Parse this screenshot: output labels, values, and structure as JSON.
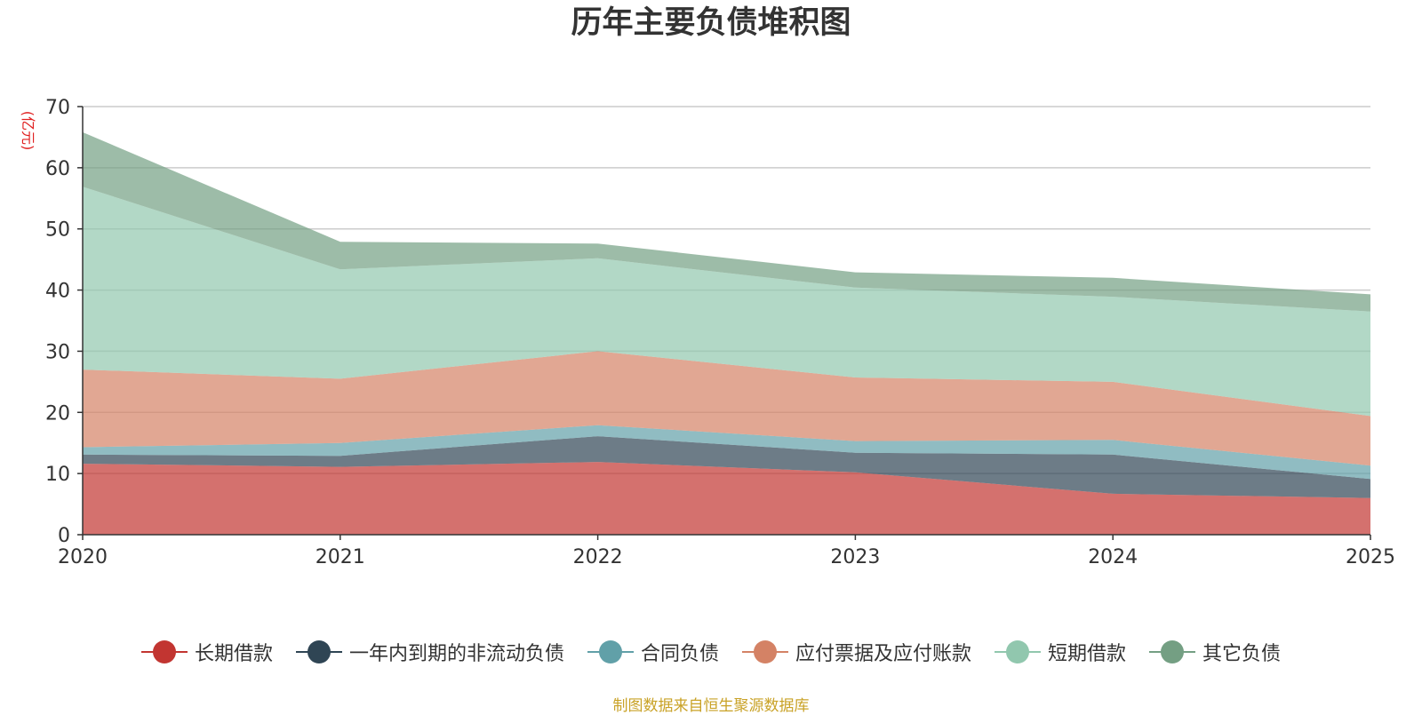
{
  "chart_data": {
    "type": "area",
    "stacked": true,
    "title": "历年主要负债堆积图",
    "ylabel": "(亿元)",
    "xlabel": "",
    "categories": [
      "2020",
      "2021",
      "2022",
      "2023",
      "2024",
      "2025"
    ],
    "ylim": [
      0,
      70
    ],
    "yticks": [
      0,
      10,
      20,
      30,
      40,
      50,
      60,
      70
    ],
    "grid": true,
    "legend_position": "bottom",
    "series": [
      {
        "name": "长期借款",
        "color": "#c23531",
        "values": [
          11.6,
          11.1,
          11.9,
          10.2,
          6.7,
          6.0
        ]
      },
      {
        "name": "一年内到期的非流动负债",
        "color": "#2f4554",
        "values": [
          1.5,
          1.8,
          4.2,
          3.2,
          6.4,
          3.1
        ]
      },
      {
        "name": "合同负债",
        "color": "#61a0a8",
        "values": [
          1.2,
          2.1,
          1.8,
          1.9,
          2.4,
          2.2
        ]
      },
      {
        "name": "应付票据及应付账款",
        "color": "#d48265",
        "values": [
          12.7,
          10.5,
          12.1,
          10.4,
          9.5,
          8.1
        ]
      },
      {
        "name": "短期借款",
        "color": "#91c7ae",
        "values": [
          29.9,
          17.9,
          15.2,
          14.7,
          13.9,
          17.1
        ]
      },
      {
        "name": "其它负债",
        "color": "#749f83",
        "values": [
          8.9,
          4.5,
          2.4,
          2.5,
          3.1,
          2.8
        ]
      }
    ]
  },
  "source_note": "制图数据来自恒生聚源数据库"
}
